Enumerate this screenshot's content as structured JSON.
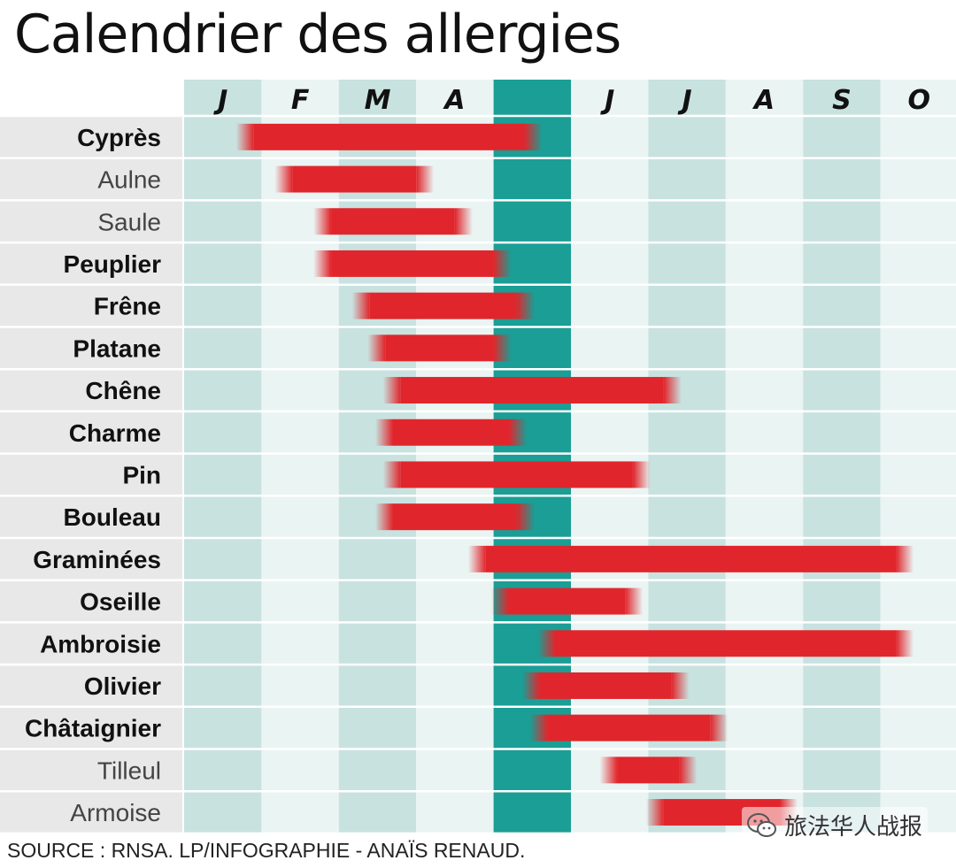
{
  "chart_data": {
    "type": "gantt",
    "title": "Calendrier des allergies",
    "months": [
      "J",
      "F",
      "M",
      "A",
      "M",
      "J",
      "J",
      "A",
      "S",
      "O"
    ],
    "highlight_month_index": 4,
    "rows": [
      {
        "name": "Cyprès",
        "bold": true,
        "start": 0.9,
        "end": 4.4
      },
      {
        "name": "Aulne",
        "bold": false,
        "start": 1.4,
        "end": 3.0
      },
      {
        "name": "Saule",
        "bold": false,
        "start": 1.9,
        "end": 3.5
      },
      {
        "name": "Peuplier",
        "bold": true,
        "start": 1.9,
        "end": 4.0
      },
      {
        "name": "Frêne",
        "bold": true,
        "start": 2.4,
        "end": 4.3
      },
      {
        "name": "Platane",
        "bold": true,
        "start": 2.6,
        "end": 4.0
      },
      {
        "name": "Chêne",
        "bold": true,
        "start": 2.8,
        "end": 6.2
      },
      {
        "name": "Charme",
        "bold": true,
        "start": 2.7,
        "end": 4.2
      },
      {
        "name": "Pin",
        "bold": true,
        "start": 2.8,
        "end": 5.8
      },
      {
        "name": "Bouleau",
        "bold": true,
        "start": 2.7,
        "end": 4.3
      },
      {
        "name": "Graminées",
        "bold": true,
        "start": 3.9,
        "end": 9.2
      },
      {
        "name": "Oseille",
        "bold": true,
        "start": 4.2,
        "end": 5.7
      },
      {
        "name": "Ambroisie",
        "bold": true,
        "start": 4.8,
        "end": 9.2
      },
      {
        "name": "Olivier",
        "bold": true,
        "start": 4.6,
        "end": 6.3
      },
      {
        "name": "Châtaignier",
        "bold": true,
        "start": 4.7,
        "end": 6.8
      },
      {
        "name": "Tilleul",
        "bold": false,
        "start": 5.6,
        "end": 6.4
      },
      {
        "name": "Armoise",
        "bold": false,
        "start": 6.2,
        "end": 7.7
      }
    ],
    "colors": {
      "bar": "#e0262c",
      "highlight_column": "#1a9e95",
      "column_dark": "#c8e2e0",
      "column_light": "#eaf4f3",
      "label_background": "#e8e8e8",
      "gridline": "#ffffff"
    },
    "legend": "none",
    "grid": true
  },
  "footer": {
    "source": "SOURCE : RNSA. LP/INFOGRAPHIE - ANAÏS RENAUD."
  },
  "watermark": {
    "icon": "wechat-icon",
    "text": "旅法华人战报"
  }
}
